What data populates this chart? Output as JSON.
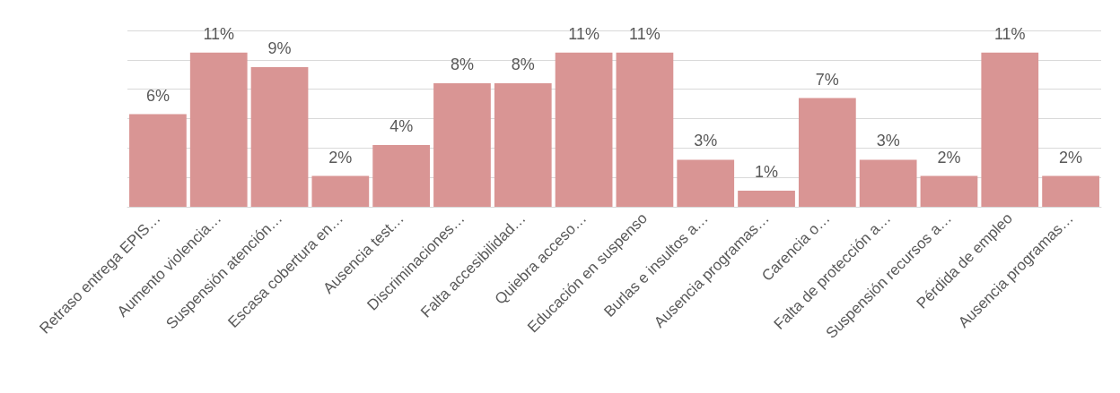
{
  "chart_data": {
    "type": "bar",
    "categories": [
      "Retraso entrega EPIS…",
      "Aumento violencia…",
      "Suspensión atención…",
      "Escasa cobertura en…",
      "Ausencia test…",
      "Discriminaciones…",
      "Falta accesibilidad…",
      "Quiebra acceso…",
      "Educación en suspenso",
      "Burlas e insultos a…",
      "Ausencia programas…",
      "Carencia o…",
      "Falta de protección a…",
      "Suspensión recursos a…",
      "Pérdida de empleo",
      "Ausencia programas…"
    ],
    "values": [
      6.3,
      10.5,
      9.5,
      2.1,
      4.2,
      8.4,
      8.4,
      10.5,
      10.5,
      3.2,
      1.1,
      7.4,
      3.2,
      2.1,
      10.5,
      2.1
    ],
    "value_labels": [
      "6%",
      "11%",
      "9%",
      "2%",
      "4%",
      "8%",
      "8%",
      "11%",
      "11%",
      "3%",
      "1%",
      "7%",
      "3%",
      "2%",
      "11%",
      "2%"
    ],
    "color": "#d99594",
    "ylim": [
      0,
      12
    ],
    "yticks": [
      {
        "value": 0,
        "label": null
      },
      {
        "value": 2,
        "label": null
      },
      {
        "value": 4,
        "label": null
      },
      {
        "value": 6,
        "label": null
      },
      {
        "value": 8,
        "label": null
      },
      {
        "value": 10,
        "label": null
      },
      {
        "value": 12,
        "label": null
      }
    ],
    "tick_labels": "x",
    "grid": "y"
  }
}
